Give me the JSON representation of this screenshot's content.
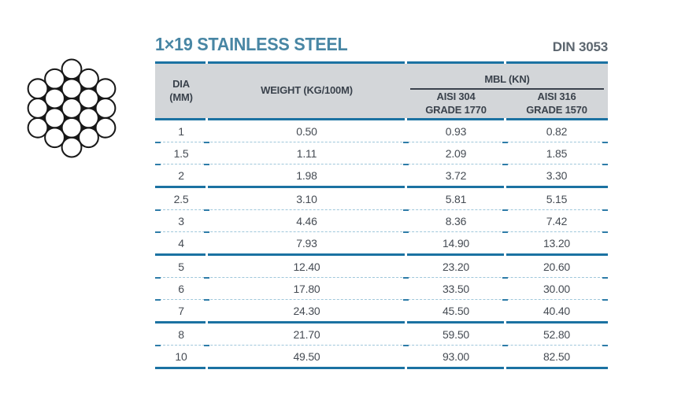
{
  "header": {
    "title": "1×19 STAINLESS STEEL",
    "standard": "DIN 3053"
  },
  "diagram": {
    "name": "1x19-wire-rope-cross-section",
    "wire_count": 19
  },
  "colors": {
    "accent_teal": "#1b72a2",
    "title_teal": "#4886a4",
    "standard_gray": "#5c666f",
    "header_bg": "#d3d6d9",
    "header_text": "#3a424c",
    "body_text": "#454b53",
    "dashed_separator": "#9fc7db",
    "separator_tick": "#2e7ca8"
  },
  "table": {
    "columns": {
      "dia_line1": "DIA",
      "dia_line2": "(MM)",
      "weight": "WEIGHT (KG/100M)",
      "mbl_group": "MBL (KN)",
      "aisi304_line1": "AISI 304",
      "aisi304_line2": "GRADE 1770",
      "aisi316_line1": "AISI 316",
      "aisi316_line2": "GRADE 1570"
    },
    "rows": [
      {
        "dia": "1",
        "weight": "0.50",
        "aisi304": "0.93",
        "aisi316": "0.82",
        "group_end": false
      },
      {
        "dia": "1.5",
        "weight": "1.11",
        "aisi304": "2.09",
        "aisi316": "1.85",
        "group_end": false
      },
      {
        "dia": "2",
        "weight": "1.98",
        "aisi304": "3.72",
        "aisi316": "3.30",
        "group_end": true
      },
      {
        "dia": "2.5",
        "weight": "3.10",
        "aisi304": "5.81",
        "aisi316": "5.15",
        "group_end": false
      },
      {
        "dia": "3",
        "weight": "4.46",
        "aisi304": "8.36",
        "aisi316": "7.42",
        "group_end": false
      },
      {
        "dia": "4",
        "weight": "7.93",
        "aisi304": "14.90",
        "aisi316": "13.20",
        "group_end": true
      },
      {
        "dia": "5",
        "weight": "12.40",
        "aisi304": "23.20",
        "aisi316": "20.60",
        "group_end": false
      },
      {
        "dia": "6",
        "weight": "17.80",
        "aisi304": "33.50",
        "aisi316": "30.00",
        "group_end": false
      },
      {
        "dia": "7",
        "weight": "24.30",
        "aisi304": "45.50",
        "aisi316": "40.40",
        "group_end": true
      },
      {
        "dia": "8",
        "weight": "21.70",
        "aisi304": "59.50",
        "aisi316": "52.80",
        "group_end": false
      },
      {
        "dia": "10",
        "weight": "49.50",
        "aisi304": "93.00",
        "aisi316": "82.50",
        "group_end": true
      }
    ]
  }
}
